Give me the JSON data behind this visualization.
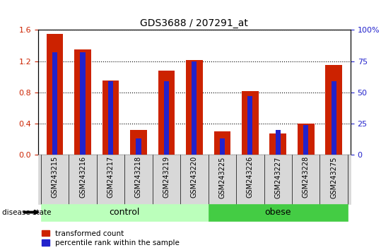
{
  "title": "GDS3688 / 207291_at",
  "samples": [
    "GSM243215",
    "GSM243216",
    "GSM243217",
    "GSM243218",
    "GSM243219",
    "GSM243220",
    "GSM243225",
    "GSM243226",
    "GSM243227",
    "GSM243228",
    "GSM243275"
  ],
  "red_values": [
    1.55,
    1.35,
    0.95,
    0.32,
    1.08,
    1.22,
    0.3,
    0.82,
    0.28,
    0.4,
    1.15
  ],
  "blue_pct": [
    82,
    82,
    59,
    13,
    59,
    75,
    13,
    47,
    20,
    24,
    59
  ],
  "n_control": 6,
  "n_obese": 5,
  "ylim_left": [
    0,
    1.6
  ],
  "ylim_right": [
    0,
    100
  ],
  "yticks_left": [
    0,
    0.4,
    0.8,
    1.2,
    1.6
  ],
  "yticks_right": [
    0,
    25,
    50,
    75,
    100
  ],
  "bar_color_red": "#cc2200",
  "bar_color_blue": "#2222cc",
  "bar_width": 0.6,
  "blue_bar_width": 0.18,
  "bg_plot": "#ffffff",
  "bg_xtick": "#d8d8d8",
  "bg_control": "#bbffbb",
  "bg_obese": "#44cc44",
  "label_red": "transformed count",
  "label_blue": "percentile rank within the sample",
  "group_label_control": "control",
  "group_label_obese": "obese",
  "disease_state_label": "disease state",
  "title_fontsize": 10,
  "tick_fontsize": 7,
  "label_fontsize": 8
}
